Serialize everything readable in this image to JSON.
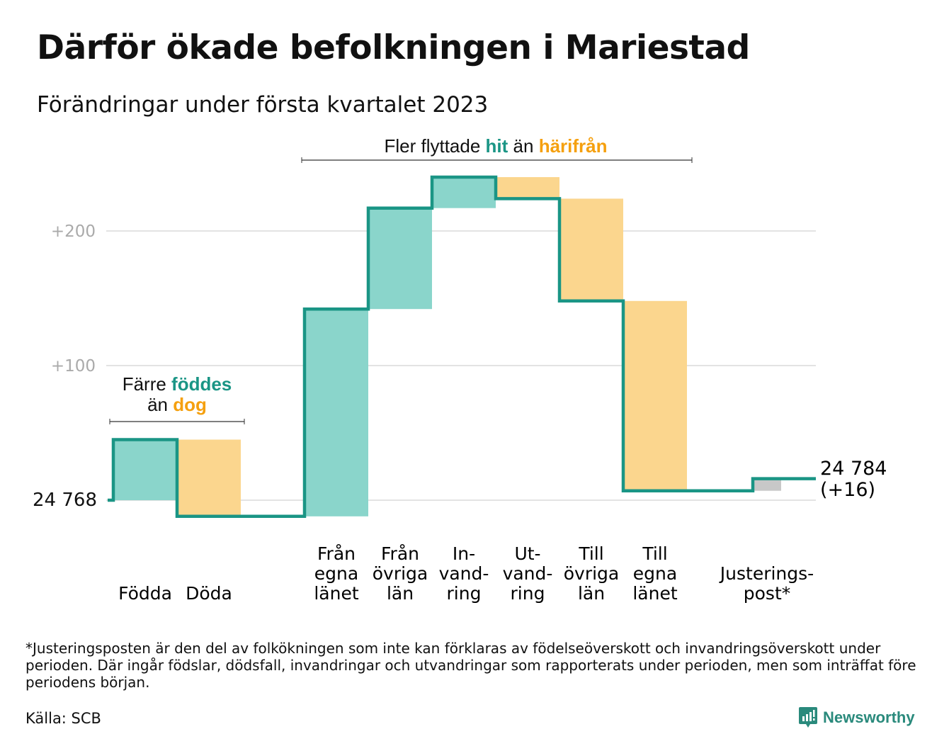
{
  "title": "Därför ökade befolkningen i Mariestad",
  "subtitle": "Förändringar under första kvartalet 2023",
  "footnote": "*Justeringsposten är den del av folkökningen som inte kan förklaras av födelseöverskott och invandringsöverskott under perioden. Där ingår födslar, dödsfall, invandringar och utvandringar som rapporterats under perioden, men som inträffat före periodens början.",
  "source": "Källa: SCB",
  "brand": "Newsworthy",
  "colors": {
    "line": "#1a9585",
    "increase": "#8ad5cb",
    "decrease": "#fbd68e",
    "adjust": "#c8c8c8",
    "teal_text": "#1a9585",
    "orange_text": "#f5a00f"
  },
  "chart_data": {
    "type": "waterfall",
    "start_value": 24768,
    "start_label": "24 768",
    "end_label": "24 784",
    "end_change_label": "(+16)",
    "yticks": [
      {
        "value": 100,
        "label": "+100"
      },
      {
        "value": 200,
        "label": "+200"
      }
    ],
    "grid": true,
    "categories": [
      {
        "label": [
          "Födda"
        ],
        "value": 45,
        "kind": "increase"
      },
      {
        "label": [
          "Döda"
        ],
        "value": -57,
        "kind": "decrease"
      },
      {
        "label": [
          "Från",
          "egna",
          "länet"
        ],
        "value": 154,
        "kind": "increase"
      },
      {
        "label": [
          "Från",
          "övriga",
          "län"
        ],
        "value": 75,
        "kind": "increase"
      },
      {
        "label": [
          "In-",
          "vand-",
          "ring"
        ],
        "value": 23,
        "kind": "increase"
      },
      {
        "label": [
          "Ut-",
          "vand-",
          "ring"
        ],
        "value": -16,
        "kind": "decrease"
      },
      {
        "label": [
          "Till",
          "övriga",
          "län"
        ],
        "value": -76,
        "kind": "decrease"
      },
      {
        "label": [
          "Till",
          "egna",
          "länet"
        ],
        "value": -141,
        "kind": "decrease"
      },
      {
        "label": [
          "Justerings-",
          "post*"
        ],
        "value": 9,
        "kind": "adjust"
      }
    ],
    "annotations": {
      "births": {
        "a": "Färre ",
        "b": "föddes",
        "c": "än ",
        "d": "dog"
      },
      "migration": {
        "a": "Fler flyttade ",
        "b": "hit",
        "c": " än ",
        "d": "härifrån"
      }
    }
  }
}
